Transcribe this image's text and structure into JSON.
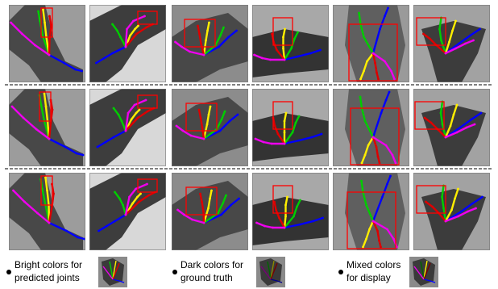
{
  "figure": {
    "rows": 3,
    "columns": 6,
    "separator_style": "dashed"
  },
  "colors": {
    "thumb": "#0000ff",
    "index": "#00cc00",
    "middle": "#ffee00",
    "ring": "#dd0000",
    "pinky": "#ee00ee",
    "box": "#ff0000",
    "background": "#ffffff",
    "depth_bg": "#9a9a9a"
  },
  "legend": [
    {
      "line1": "Bright colors for",
      "line2": "predicted joints",
      "icon": "hand-skeleton-bright-icon"
    },
    {
      "line1": "Dark colors for",
      "line2": "ground truth",
      "icon": "hand-skeleton-dark-icon"
    },
    {
      "line1": "Mixed colors",
      "line2": "for display",
      "icon": "hand-skeleton-mixed-icon"
    }
  ]
}
